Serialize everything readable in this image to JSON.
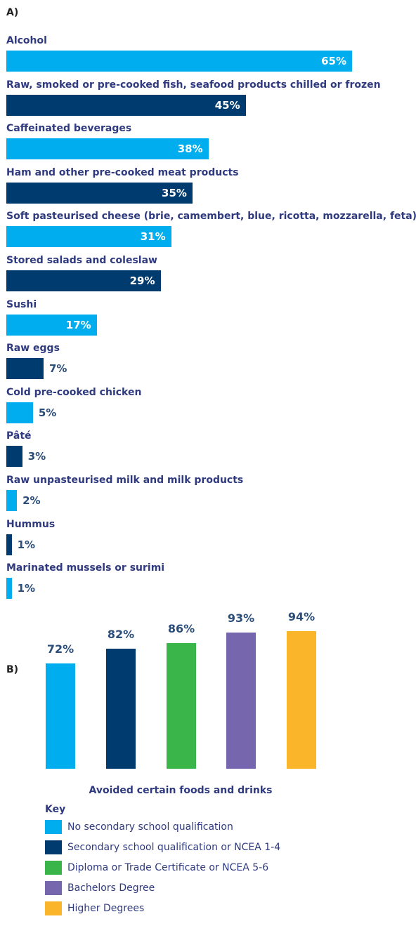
{
  "colors": {
    "light_blue": "#00aeef",
    "dark_blue": "#003b6f",
    "green": "#39b54a",
    "purple": "#7666ad",
    "yellow": "#fbb52a"
  },
  "chart_data": [
    {
      "type": "bar",
      "orientation": "horizontal",
      "title": "A)",
      "categories": [
        "Alcohol",
        "Raw, smoked or pre-cooked fish, seafood products chilled or frozen",
        "Caffeinated beverages",
        "Ham and other pre-cooked meat products",
        "Soft pasteurised cheese (brie, camembert, blue, ricotta, mozzarella, feta)",
        "Stored salads and coleslaw",
        "Sushi",
        "Raw eggs",
        "Cold pre-cooked chicken",
        "Pâté",
        "Raw unpasteurised milk and milk products",
        "Hummus",
        "Marinated mussels or surimi"
      ],
      "values": [
        65,
        45,
        38,
        35,
        31,
        29,
        17,
        7,
        5,
        3,
        2,
        1,
        1
      ],
      "value_labels": [
        "65%",
        "45%",
        "38%",
        "35%",
        "31%",
        "29%",
        "17%",
        "7%",
        "5%",
        "3%",
        "2%",
        "1%",
        "1%"
      ],
      "unit": "%",
      "xlim": [
        0,
        100
      ],
      "grid": false
    },
    {
      "type": "bar",
      "title": "B)",
      "xlabel": "Avoided certain foods and drinks",
      "categories": [
        "Avoided certain foods and drinks"
      ],
      "series": [
        {
          "name": "No secondary school qualification",
          "values": [
            72
          ],
          "value_label": "72%",
          "color": "#00aeef"
        },
        {
          "name": "Secondary school qualification or NCEA 1-4",
          "values": [
            82
          ],
          "value_label": "82%",
          "color": "#003b6f"
        },
        {
          "name": "Diploma or Trade Certificate or NCEA 5-6",
          "values": [
            86
          ],
          "value_label": "86%",
          "color": "#39b54a"
        },
        {
          "name": "Bachelors Degree",
          "values": [
            93
          ],
          "value_label": "93%",
          "color": "#7666ad"
        },
        {
          "name": "Higher Degrees",
          "values": [
            94
          ],
          "value_label": "94%",
          "color": "#fbb52a"
        }
      ],
      "unit": "%",
      "legend_title": "Key",
      "legend_position": "bottom",
      "grid": false
    }
  ]
}
